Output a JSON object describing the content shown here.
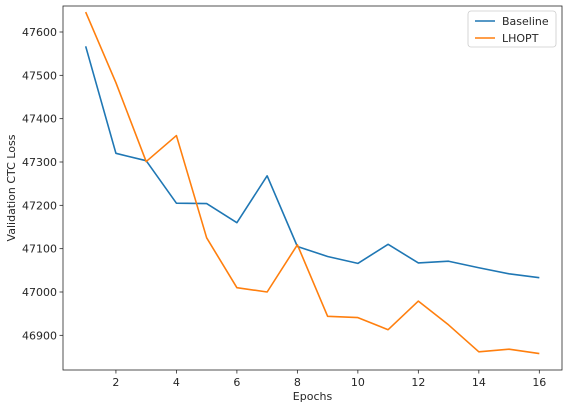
{
  "chart_data": {
    "type": "line",
    "xlabel": "Epochs",
    "ylabel": "Validation CTC Loss",
    "xlim": [
      0.25,
      16.75
    ],
    "ylim": [
      46820,
      47660
    ],
    "xticks": [
      2,
      4,
      6,
      8,
      10,
      12,
      14,
      16
    ],
    "yticks": [
      46900,
      47000,
      47100,
      47200,
      47300,
      47400,
      47500,
      47600
    ],
    "grid": false,
    "legend_position": "top-right",
    "x": [
      1,
      2,
      3,
      4,
      5,
      6,
      7,
      8,
      9,
      10,
      11,
      12,
      13,
      14,
      15,
      16
    ],
    "series": [
      {
        "name": "Baseline",
        "color": "#1f77b4",
        "values": [
          47567,
          47320,
          47303,
          47205,
          47204,
          47160,
          47268,
          47105,
          47082,
          47066,
          47110,
          47067,
          47071,
          47056,
          47042,
          47033
        ]
      },
      {
        "name": "LHOPT",
        "color": "#ff7f0e",
        "values": [
          47646,
          47483,
          47301,
          47361,
          47125,
          47010,
          47000,
          47109,
          46944,
          46941,
          46913,
          46979,
          46924,
          46862,
          46868,
          46858
        ]
      }
    ]
  }
}
